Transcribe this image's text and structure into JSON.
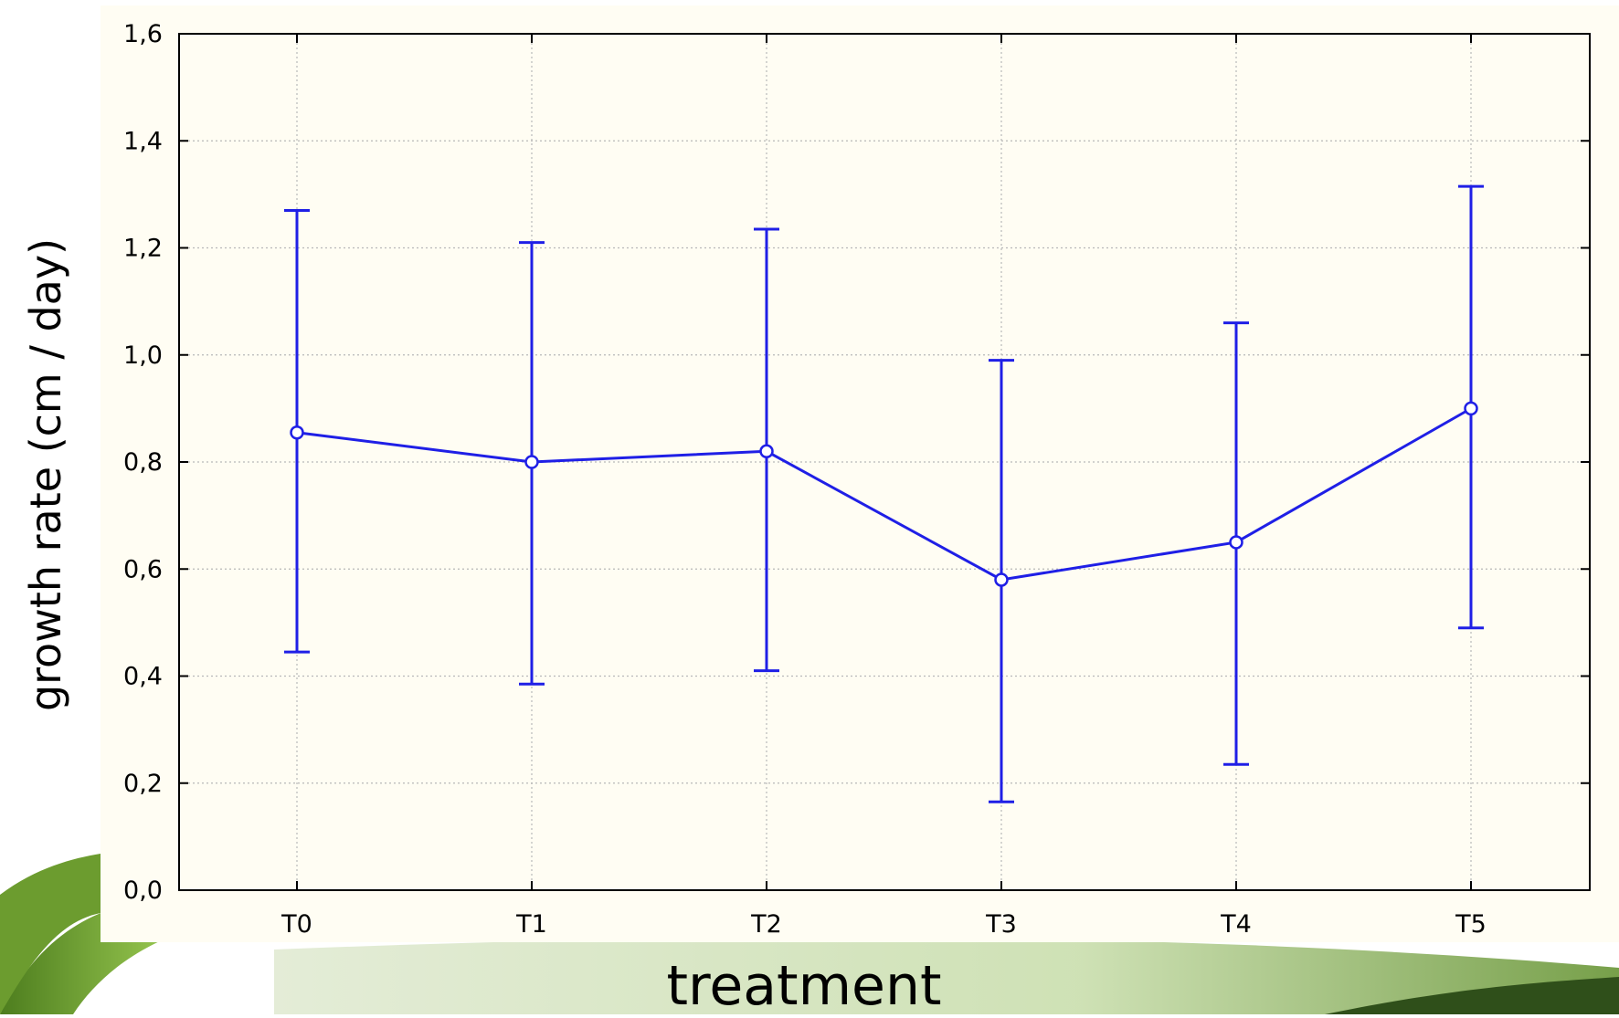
{
  "chart_data": {
    "type": "line",
    "title": "",
    "xlabel": "treatment",
    "ylabel": "growth rate (cm / day)",
    "categories": [
      "T0",
      "T1",
      "T2",
      "T3",
      "T4",
      "T5"
    ],
    "series": [
      {
        "values": [
          0.855,
          0.8,
          0.82,
          0.58,
          0.65,
          0.9
        ],
        "error_low": [
          0.445,
          0.385,
          0.41,
          0.165,
          0.235,
          0.49
        ],
        "error_high": [
          1.27,
          1.21,
          1.235,
          0.99,
          1.06,
          1.315
        ]
      }
    ],
    "ylim": [
      0,
      1.6
    ],
    "yticks": [
      "0,0",
      "0,2",
      "0,4",
      "0,6",
      "0,8",
      "1,0",
      "1,2",
      "1,4",
      "1,6"
    ],
    "grid": true,
    "colors": {
      "series": "#1f1fe6",
      "axis": "#000000",
      "grid": "#b8b8b8"
    }
  }
}
